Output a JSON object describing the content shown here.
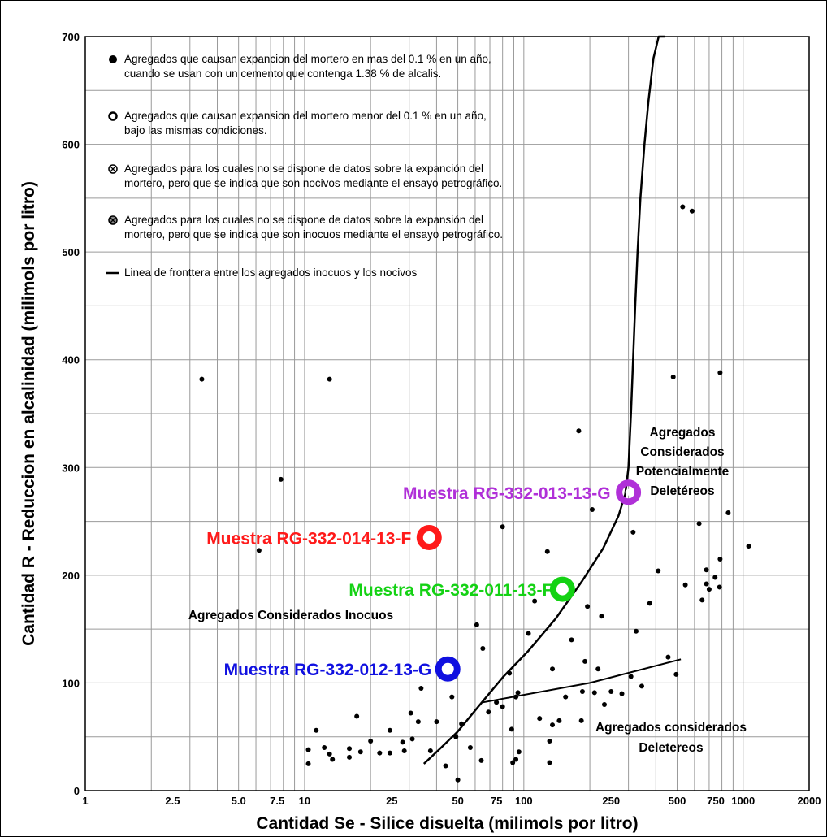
{
  "chart_data": {
    "type": "scatter",
    "xlabel": "Cantidad Se - Silice disuelta (milimols por litro)",
    "ylabel": "Cantidad R - Reduccion en alcalinidad (milimols por litro)",
    "x_scale": "log",
    "xlim": [
      1,
      2000
    ],
    "ylim": [
      0,
      700
    ],
    "grid": true,
    "x_ticks": [
      1,
      2.5,
      5.0,
      7.5,
      10,
      25,
      50,
      75,
      100,
      250,
      500,
      750,
      1000,
      2000
    ],
    "x_tick_labels": [
      "1",
      "2.5",
      "5.0",
      "7.5",
      "10",
      "25",
      "50",
      "75",
      "100",
      "250",
      "500",
      "750",
      "1000",
      "2000"
    ],
    "y_ticks": [
      0,
      100,
      200,
      300,
      400,
      500,
      600,
      700
    ],
    "y_tick_labels": [
      "0",
      "100",
      "200",
      "300",
      "400",
      "500",
      "600",
      "700"
    ],
    "legend": [
      {
        "symbol": "filled-dot",
        "lines": [
          "Agregados que causan expancion del mortero en mas del 0.1 % en un año,",
          "cuando se usan con un cemento que contenga 1.38 % de alcalis."
        ]
      },
      {
        "symbol": "open-circle",
        "lines": [
          "Agregados que causan expansion del mortero menor del 0.1 % en un año,",
          "bajo las mismas condiciones."
        ]
      },
      {
        "symbol": "crossed-circle",
        "lines": [
          "Agregados para los cuales no se dispone de datos sobre la expanción del",
          "mortero, pero que se indica que son nocivos mediante el ensayo petrográfico."
        ]
      },
      {
        "symbol": "hatched-circle",
        "lines": [
          "Agregados para los cuales no se dispone de datos sobre la expansión del",
          "mortero, pero que se indica que son inocuos mediante el ensayo petrográfico."
        ]
      },
      {
        "symbol": "line",
        "lines": [
          "Linea de fronttera entre los agregados inocuos y los nocivos"
        ]
      }
    ],
    "boundary_curve": {
      "x": [
        35,
        42,
        50,
        62,
        80,
        105,
        140,
        185,
        230,
        270,
        290,
        300,
        308,
        315,
        322,
        330,
        340,
        355,
        370,
        390,
        412,
        440
      ],
      "y": [
        25,
        40,
        55,
        78,
        105,
        130,
        160,
        195,
        225,
        255,
        275,
        300,
        350,
        400,
        450,
        500,
        550,
        600,
        640,
        680,
        710,
        740
      ]
    },
    "secondary_line": {
      "x": [
        65,
        200,
        520
      ],
      "y": [
        82,
        100,
        122
      ]
    },
    "points": [
      {
        "x": 3.4,
        "y": 382
      },
      {
        "x": 13,
        "y": 382
      },
      {
        "x": 7.8,
        "y": 289
      },
      {
        "x": 6.2,
        "y": 223
      },
      {
        "x": 10.4,
        "y": 38
      },
      {
        "x": 10.4,
        "y": 25
      },
      {
        "x": 11.3,
        "y": 56
      },
      {
        "x": 12.3,
        "y": 40
      },
      {
        "x": 13,
        "y": 34
      },
      {
        "x": 13.4,
        "y": 29
      },
      {
        "x": 16,
        "y": 39
      },
      {
        "x": 16,
        "y": 31
      },
      {
        "x": 17.3,
        "y": 69
      },
      {
        "x": 18,
        "y": 36
      },
      {
        "x": 20,
        "y": 46
      },
      {
        "x": 22,
        "y": 35
      },
      {
        "x": 24.5,
        "y": 56
      },
      {
        "x": 24.5,
        "y": 35
      },
      {
        "x": 28,
        "y": 45
      },
      {
        "x": 28.5,
        "y": 37
      },
      {
        "x": 30.5,
        "y": 72
      },
      {
        "x": 31,
        "y": 48
      },
      {
        "x": 33,
        "y": 64
      },
      {
        "x": 34,
        "y": 95
      },
      {
        "x": 37.5,
        "y": 37
      },
      {
        "x": 40,
        "y": 64
      },
      {
        "x": 44,
        "y": 23
      },
      {
        "x": 47,
        "y": 87
      },
      {
        "x": 49,
        "y": 50
      },
      {
        "x": 50,
        "y": 10
      },
      {
        "x": 52,
        "y": 62
      },
      {
        "x": 57,
        "y": 40
      },
      {
        "x": 61,
        "y": 154
      },
      {
        "x": 64,
        "y": 28
      },
      {
        "x": 65,
        "y": 132
      },
      {
        "x": 69,
        "y": 73
      },
      {
        "x": 75,
        "y": 82
      },
      {
        "x": 80,
        "y": 245
      },
      {
        "x": 80,
        "y": 78
      },
      {
        "x": 86,
        "y": 109
      },
      {
        "x": 88,
        "y": 57
      },
      {
        "x": 89,
        "y": 26
      },
      {
        "x": 92,
        "y": 87
      },
      {
        "x": 92,
        "y": 29
      },
      {
        "x": 94,
        "y": 91
      },
      {
        "x": 95,
        "y": 36
      },
      {
        "x": 105,
        "y": 146
      },
      {
        "x": 112,
        "y": 176
      },
      {
        "x": 118,
        "y": 67
      },
      {
        "x": 128,
        "y": 222
      },
      {
        "x": 131,
        "y": 46
      },
      {
        "x": 131,
        "y": 26
      },
      {
        "x": 135,
        "y": 113
      },
      {
        "x": 135,
        "y": 61
      },
      {
        "x": 145,
        "y": 65
      },
      {
        "x": 155,
        "y": 87
      },
      {
        "x": 165,
        "y": 140
      },
      {
        "x": 178,
        "y": 334
      },
      {
        "x": 183,
        "y": 65
      },
      {
        "x": 185,
        "y": 92
      },
      {
        "x": 190,
        "y": 120
      },
      {
        "x": 195,
        "y": 171
      },
      {
        "x": 205,
        "y": 261
      },
      {
        "x": 210,
        "y": 91
      },
      {
        "x": 218,
        "y": 113
      },
      {
        "x": 226,
        "y": 162
      },
      {
        "x": 233,
        "y": 80
      },
      {
        "x": 250,
        "y": 92
      },
      {
        "x": 280,
        "y": 90
      },
      {
        "x": 308,
        "y": 106
      },
      {
        "x": 315,
        "y": 240
      },
      {
        "x": 325,
        "y": 148
      },
      {
        "x": 345,
        "y": 97
      },
      {
        "x": 375,
        "y": 174
      },
      {
        "x": 410,
        "y": 204
      },
      {
        "x": 455,
        "y": 124
      },
      {
        "x": 480,
        "y": 384
      },
      {
        "x": 495,
        "y": 108
      },
      {
        "x": 530,
        "y": 542
      },
      {
        "x": 545,
        "y": 191
      },
      {
        "x": 585,
        "y": 538
      },
      {
        "x": 630,
        "y": 248
      },
      {
        "x": 650,
        "y": 177
      },
      {
        "x": 680,
        "y": 205
      },
      {
        "x": 680,
        "y": 192
      },
      {
        "x": 700,
        "y": 187
      },
      {
        "x": 745,
        "y": 198
      },
      {
        "x": 780,
        "y": 189
      },
      {
        "x": 785,
        "y": 388
      },
      {
        "x": 785,
        "y": 215
      },
      {
        "x": 855,
        "y": 258
      },
      {
        "x": 1060,
        "y": 227
      }
    ],
    "samples": [
      {
        "name": "Muestra RG-332-013-13-G",
        "x": 300,
        "y": 277,
        "color": "#b030d8"
      },
      {
        "name": "Muestra RG-332-014-13-F",
        "x": 37,
        "y": 235,
        "color": "#ff1a1a"
      },
      {
        "name": "Muestra RG-332-011-13-F",
        "x": 150,
        "y": 187,
        "color": "#14d214"
      },
      {
        "name": "Muestra RG-332-012-13-G",
        "x": 45,
        "y": 113,
        "color": "#1010e0"
      }
    ],
    "region_labels": [
      {
        "lines": [
          "Agregados",
          "Considerados",
          "Potencialmente",
          "Deletéreos"
        ]
      },
      {
        "lines": [
          "Agregados Considerados Inocuos"
        ]
      },
      {
        "lines": [
          "Agregados considerados",
          "Deletereos"
        ]
      }
    ]
  }
}
